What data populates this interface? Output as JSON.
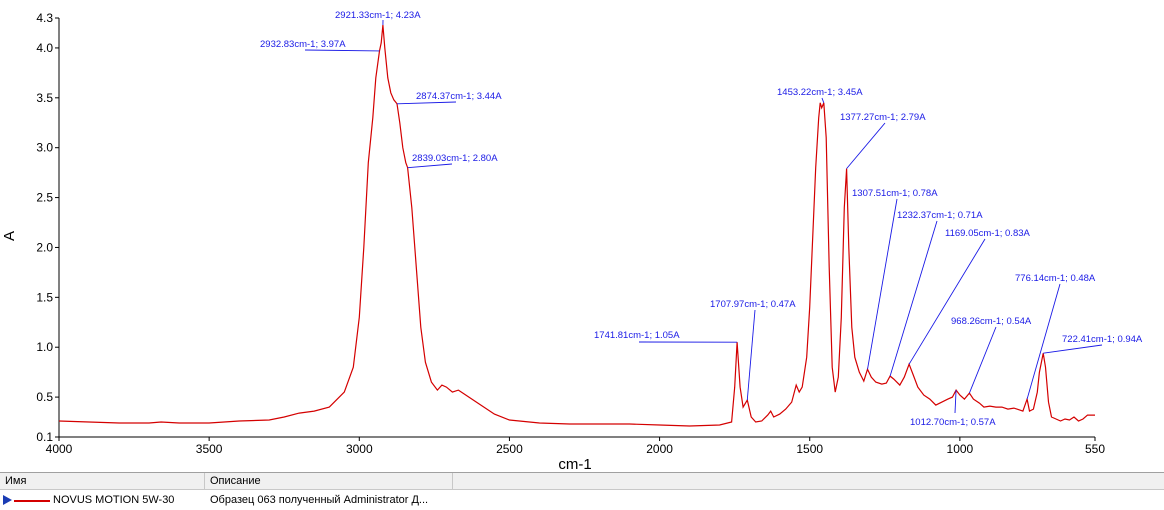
{
  "chart_data": {
    "type": "line",
    "xlabel": "cm-1",
    "ylabel": "A",
    "xlim": [
      4000,
      550
    ],
    "ylim": [
      0.1,
      4.3
    ],
    "x_reversed": true,
    "xticks": [
      4000,
      3500,
      3000,
      2500,
      2000,
      1500,
      1000,
      550
    ],
    "yticks": [
      0.1,
      0.5,
      1.0,
      1.5,
      2.0,
      2.5,
      3.0,
      3.5,
      4.0,
      4.3
    ],
    "xtick_labels": [
      "4000",
      "3500",
      "3000",
      "2500",
      "2000",
      "1500",
      "1000",
      "550"
    ],
    "ytick_labels": [
      "0.1",
      "0.5",
      "1.0",
      "1.5",
      "2.0",
      "2.5",
      "3.0",
      "3.5",
      "4.0",
      "4.3"
    ],
    "grid": false,
    "series": [
      {
        "name": "NOVUS MOTION 5W-30",
        "color": "#d40000",
        "points": [
          [
            4000,
            0.26
          ],
          [
            3900,
            0.25
          ],
          [
            3800,
            0.24
          ],
          [
            3700,
            0.24
          ],
          [
            3660,
            0.25
          ],
          [
            3600,
            0.24
          ],
          [
            3500,
            0.24
          ],
          [
            3450,
            0.25
          ],
          [
            3400,
            0.26
          ],
          [
            3300,
            0.27
          ],
          [
            3250,
            0.3
          ],
          [
            3200,
            0.34
          ],
          [
            3150,
            0.36
          ],
          [
            3100,
            0.4
          ],
          [
            3050,
            0.55
          ],
          [
            3020,
            0.8
          ],
          [
            3000,
            1.3
          ],
          [
            2985,
            2.0
          ],
          [
            2970,
            2.85
          ],
          [
            2955,
            3.3
          ],
          [
            2945,
            3.7
          ],
          [
            2932.83,
            3.97
          ],
          [
            2927,
            4.05
          ],
          [
            2921.33,
            4.23
          ],
          [
            2915,
            4.0
          ],
          [
            2905,
            3.7
          ],
          [
            2895,
            3.55
          ],
          [
            2885,
            3.48
          ],
          [
            2874.37,
            3.44
          ],
          [
            2865,
            3.25
          ],
          [
            2855,
            3.0
          ],
          [
            2845,
            2.85
          ],
          [
            2839.03,
            2.8
          ],
          [
            2825,
            2.4
          ],
          [
            2810,
            1.8
          ],
          [
            2795,
            1.2
          ],
          [
            2780,
            0.85
          ],
          [
            2760,
            0.65
          ],
          [
            2740,
            0.57
          ],
          [
            2725,
            0.62
          ],
          [
            2710,
            0.6
          ],
          [
            2690,
            0.55
          ],
          [
            2670,
            0.57
          ],
          [
            2650,
            0.53
          ],
          [
            2600,
            0.43
          ],
          [
            2550,
            0.33
          ],
          [
            2500,
            0.27
          ],
          [
            2400,
            0.24
          ],
          [
            2300,
            0.23
          ],
          [
            2200,
            0.23
          ],
          [
            2100,
            0.23
          ],
          [
            2000,
            0.22
          ],
          [
            1900,
            0.21
          ],
          [
            1800,
            0.22
          ],
          [
            1760,
            0.25
          ],
          [
            1750,
            0.6
          ],
          [
            1741.81,
            1.05
          ],
          [
            1732,
            0.6
          ],
          [
            1722,
            0.4
          ],
          [
            1707.97,
            0.47
          ],
          [
            1695,
            0.3
          ],
          [
            1680,
            0.25
          ],
          [
            1660,
            0.26
          ],
          [
            1640,
            0.32
          ],
          [
            1630,
            0.36
          ],
          [
            1620,
            0.3
          ],
          [
            1600,
            0.33
          ],
          [
            1580,
            0.38
          ],
          [
            1560,
            0.45
          ],
          [
            1545,
            0.62
          ],
          [
            1535,
            0.55
          ],
          [
            1525,
            0.6
          ],
          [
            1510,
            0.9
          ],
          [
            1500,
            1.4
          ],
          [
            1490,
            2.1
          ],
          [
            1480,
            2.8
          ],
          [
            1470,
            3.3
          ],
          [
            1465,
            3.45
          ],
          [
            1460,
            3.4
          ],
          [
            1453.22,
            3.45
          ],
          [
            1445,
            3.1
          ],
          [
            1435,
            1.8
          ],
          [
            1425,
            0.8
          ],
          [
            1415,
            0.55
          ],
          [
            1405,
            0.7
          ],
          [
            1395,
            1.3
          ],
          [
            1385,
            2.4
          ],
          [
            1377.27,
            2.79
          ],
          [
            1370,
            2.0
          ],
          [
            1360,
            1.2
          ],
          [
            1350,
            0.9
          ],
          [
            1335,
            0.75
          ],
          [
            1320,
            0.66
          ],
          [
            1307.51,
            0.78
          ],
          [
            1295,
            0.7
          ],
          [
            1280,
            0.65
          ],
          [
            1260,
            0.63
          ],
          [
            1245,
            0.64
          ],
          [
            1232.37,
            0.71
          ],
          [
            1220,
            0.68
          ],
          [
            1200,
            0.62
          ],
          [
            1185,
            0.7
          ],
          [
            1169.05,
            0.83
          ],
          [
            1155,
            0.72
          ],
          [
            1140,
            0.6
          ],
          [
            1120,
            0.52
          ],
          [
            1100,
            0.48
          ],
          [
            1080,
            0.42
          ],
          [
            1060,
            0.45
          ],
          [
            1040,
            0.48
          ],
          [
            1025,
            0.5
          ],
          [
            1012.7,
            0.57
          ],
          [
            1000,
            0.52
          ],
          [
            985,
            0.48
          ],
          [
            968.26,
            0.54
          ],
          [
            955,
            0.48
          ],
          [
            935,
            0.44
          ],
          [
            920,
            0.4
          ],
          [
            900,
            0.41
          ],
          [
            880,
            0.4
          ],
          [
            860,
            0.4
          ],
          [
            840,
            0.38
          ],
          [
            820,
            0.39
          ],
          [
            800,
            0.37
          ],
          [
            790,
            0.36
          ],
          [
            776.14,
            0.48
          ],
          [
            768,
            0.36
          ],
          [
            755,
            0.38
          ],
          [
            742,
            0.55
          ],
          [
            735,
            0.75
          ],
          [
            722.41,
            0.94
          ],
          [
            715,
            0.8
          ],
          [
            705,
            0.45
          ],
          [
            695,
            0.3
          ],
          [
            680,
            0.28
          ],
          [
            665,
            0.26
          ],
          [
            650,
            0.28
          ],
          [
            635,
            0.27
          ],
          [
            620,
            0.3
          ],
          [
            605,
            0.26
          ],
          [
            590,
            0.28
          ],
          [
            575,
            0.32
          ],
          [
            560,
            0.32
          ],
          [
            550,
            0.32
          ]
        ]
      }
    ],
    "annotations": [
      {
        "x": 2921.33,
        "y": 4.23,
        "label": "2921.33cm-1; 4.23A"
      },
      {
        "x": 2932.83,
        "y": 3.97,
        "label": "2932.83cm-1; 3.97A"
      },
      {
        "x": 2874.37,
        "y": 3.44,
        "label": "2874.37cm-1; 3.44A"
      },
      {
        "x": 2839.03,
        "y": 2.8,
        "label": "2839.03cm-1; 2.80A"
      },
      {
        "x": 1453.22,
        "y": 3.45,
        "label": "1453.22cm-1; 3.45A"
      },
      {
        "x": 1377.27,
        "y": 2.79,
        "label": "1377.27cm-1; 2.79A"
      },
      {
        "x": 1307.51,
        "y": 0.78,
        "label": "1307.51cm-1; 0.78A"
      },
      {
        "x": 1232.37,
        "y": 0.71,
        "label": "1232.37cm-1; 0.71A"
      },
      {
        "x": 1169.05,
        "y": 0.83,
        "label": "1169.05cm-1; 0.83A"
      },
      {
        "x": 1741.81,
        "y": 1.05,
        "label": "1741.81cm-1; 1.05A"
      },
      {
        "x": 1707.97,
        "y": 0.47,
        "label": "1707.97cm-1; 0.47A"
      },
      {
        "x": 776.14,
        "y": 0.48,
        "label": "776.14cm-1; 0.48A"
      },
      {
        "x": 968.26,
        "y": 0.54,
        "label": "968.26cm-1; 0.54A"
      },
      {
        "x": 722.41,
        "y": 0.94,
        "label": "722.41cm-1; 0.94A"
      },
      {
        "x": 1012.7,
        "y": 0.57,
        "label": "1012.70cm-1; 0.57A"
      }
    ]
  },
  "legend": {
    "col_name": "Имя",
    "col_desc": "Описание",
    "row_name": "NOVUS MOTION 5W-30",
    "row_desc": "Образец 063 полученный Administrator Д..."
  }
}
